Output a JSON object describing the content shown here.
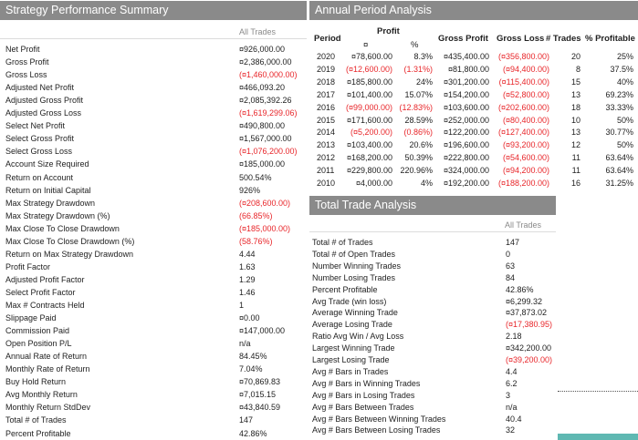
{
  "strategy": {
    "title": "Strategy Performance Summary",
    "column_header": "All Trades",
    "rows": [
      {
        "label": "Net Profit",
        "value": "¤926,000.00",
        "neg": false
      },
      {
        "label": "Gross Profit",
        "value": "¤2,386,000.00",
        "neg": false
      },
      {
        "label": "Gross Loss",
        "value": "(¤1,460,000.00)",
        "neg": true
      },
      {
        "label": "Adjusted Net Profit",
        "value": "¤466,093.20",
        "neg": false
      },
      {
        "label": "Adjusted Gross Profit",
        "value": "¤2,085,392.26",
        "neg": false
      },
      {
        "label": "Adjusted Gross Loss",
        "value": "(¤1,619,299.06)",
        "neg": true
      },
      {
        "label": "Select Net Profit",
        "value": "¤490,800.00",
        "neg": false
      },
      {
        "label": "Select Gross Profit",
        "value": "¤1,567,000.00",
        "neg": false
      },
      {
        "label": "Select Gross Loss",
        "value": "(¤1,076,200.00)",
        "neg": true
      },
      {
        "label": "Account Size Required",
        "value": "¤185,000.00",
        "neg": false
      },
      {
        "label": "Return on Account",
        "value": "500.54%",
        "neg": false
      },
      {
        "label": "Return on Initial Capital",
        "value": "926%",
        "neg": false
      },
      {
        "label": "Max Strategy Drawdown",
        "value": "(¤208,600.00)",
        "neg": true
      },
      {
        "label": "Max Strategy Drawdown (%)",
        "value": "(66.85%)",
        "neg": true
      },
      {
        "label": "Max Close To Close Drawdown",
        "value": "(¤185,000.00)",
        "neg": true
      },
      {
        "label": "Max Close To Close Drawdown (%)",
        "value": "(58.76%)",
        "neg": true
      },
      {
        "label": "Return on Max Strategy Drawdown",
        "value": "4.44",
        "neg": false
      },
      {
        "label": "Profit Factor",
        "value": "1.63",
        "neg": false
      },
      {
        "label": "Adjusted Profit Factor",
        "value": "1.29",
        "neg": false
      },
      {
        "label": "Select Profit Factor",
        "value": "1.46",
        "neg": false
      },
      {
        "label": "Max # Contracts Held",
        "value": "1",
        "neg": false
      },
      {
        "label": "Slippage Paid",
        "value": "¤0.00",
        "neg": false
      },
      {
        "label": "Commission Paid",
        "value": "¤147,000.00",
        "neg": false
      },
      {
        "label": "Open Position P/L",
        "value": "n/a",
        "neg": false
      },
      {
        "label": "Annual Rate of Return",
        "value": "84.45%",
        "neg": false
      },
      {
        "label": "Monthly Rate of Return",
        "value": "7.04%",
        "neg": false
      },
      {
        "label": "Buy  Hold Return",
        "value": "¤70,869.83",
        "neg": false
      },
      {
        "label": "Avg Monthly Return",
        "value": "¤7,015.15",
        "neg": false
      },
      {
        "label": "Monthly Return StdDev",
        "value": "¤43,840.59",
        "neg": false
      },
      {
        "label": "Total # of Trades",
        "value": "147",
        "neg": false
      },
      {
        "label": "Percent Profitable",
        "value": "42.86%",
        "neg": false
      }
    ]
  },
  "annual": {
    "title": "Annual Period Analysis",
    "headers": {
      "period": "Period",
      "profit": "Profit",
      "profit_currency": "¤",
      "profit_pct": "%",
      "gross_profit": "Gross Profit",
      "gross_loss": "Gross Loss",
      "trades": "# Trades",
      "pct_profitable": "% Profitable"
    },
    "rows": [
      {
        "period": "2020",
        "profit": "¤78,600.00",
        "profit_neg": false,
        "pct": "8.3%",
        "pct_neg": false,
        "gross_profit": "¤435,400.00",
        "gross_loss": "(¤356,800.00)",
        "trades": "20",
        "pct_profitable": "25%"
      },
      {
        "period": "2019",
        "profit": "(¤12,600.00)",
        "profit_neg": true,
        "pct": "(1.31%)",
        "pct_neg": true,
        "gross_profit": "¤81,800.00",
        "gross_loss": "(¤94,400.00)",
        "trades": "8",
        "pct_profitable": "37.5%"
      },
      {
        "period": "2018",
        "profit": "¤185,800.00",
        "profit_neg": false,
        "pct": "24%",
        "pct_neg": false,
        "gross_profit": "¤301,200.00",
        "gross_loss": "(¤115,400.00)",
        "trades": "15",
        "pct_profitable": "40%"
      },
      {
        "period": "2017",
        "profit": "¤101,400.00",
        "profit_neg": false,
        "pct": "15.07%",
        "pct_neg": false,
        "gross_profit": "¤154,200.00",
        "gross_loss": "(¤52,800.00)",
        "trades": "13",
        "pct_profitable": "69.23%"
      },
      {
        "period": "2016",
        "profit": "(¤99,000.00)",
        "profit_neg": true,
        "pct": "(12.83%)",
        "pct_neg": true,
        "gross_profit": "¤103,600.00",
        "gross_loss": "(¤202,600.00)",
        "trades": "18",
        "pct_profitable": "33.33%"
      },
      {
        "period": "2015",
        "profit": "¤171,600.00",
        "profit_neg": false,
        "pct": "28.59%",
        "pct_neg": false,
        "gross_profit": "¤252,000.00",
        "gross_loss": "(¤80,400.00)",
        "trades": "10",
        "pct_profitable": "50%"
      },
      {
        "period": "2014",
        "profit": "(¤5,200.00)",
        "profit_neg": true,
        "pct": "(0.86%)",
        "pct_neg": true,
        "gross_profit": "¤122,200.00",
        "gross_loss": "(¤127,400.00)",
        "trades": "13",
        "pct_profitable": "30.77%"
      },
      {
        "period": "2013",
        "profit": "¤103,400.00",
        "profit_neg": false,
        "pct": "20.6%",
        "pct_neg": false,
        "gross_profit": "¤196,600.00",
        "gross_loss": "(¤93,200.00)",
        "trades": "12",
        "pct_profitable": "50%"
      },
      {
        "period": "2012",
        "profit": "¤168,200.00",
        "profit_neg": false,
        "pct": "50.39%",
        "pct_neg": false,
        "gross_profit": "¤222,800.00",
        "gross_loss": "(¤54,600.00)",
        "trades": "11",
        "pct_profitable": "63.64%"
      },
      {
        "period": "2011",
        "profit": "¤229,800.00",
        "profit_neg": false,
        "pct": "220.96%",
        "pct_neg": false,
        "gross_profit": "¤324,000.00",
        "gross_loss": "(¤94,200.00)",
        "trades": "11",
        "pct_profitable": "63.64%"
      },
      {
        "period": "2010",
        "profit": "¤4,000.00",
        "profit_neg": false,
        "pct": "4%",
        "pct_neg": false,
        "gross_profit": "¤192,200.00",
        "gross_loss": "(¤188,200.00)",
        "trades": "16",
        "pct_profitable": "31.25%"
      }
    ]
  },
  "trade": {
    "title": "Total Trade Analysis",
    "column_header": "All Trades",
    "rows": [
      {
        "label": "Total # of Trades",
        "value": "147",
        "neg": false
      },
      {
        "label": "Total # of Open Trades",
        "value": "0",
        "neg": false
      },
      {
        "label": "Number Winning Trades",
        "value": "63",
        "neg": false
      },
      {
        "label": "Number Losing Trades",
        "value": "84",
        "neg": false
      },
      {
        "label": "Percent Profitable",
        "value": "42.86%",
        "neg": false
      },
      {
        "label": "Avg Trade (win  loss)",
        "value": "¤6,299.32",
        "neg": false
      },
      {
        "label": "Average Winning Trade",
        "value": "¤37,873.02",
        "neg": false
      },
      {
        "label": "Average Losing Trade",
        "value": "(¤17,380.95)",
        "neg": true
      },
      {
        "label": "Ratio Avg Win / Avg Loss",
        "value": "2.18",
        "neg": false
      },
      {
        "label": "Largest Winning Trade",
        "value": "¤342,200.00",
        "neg": false
      },
      {
        "label": "Largest Losing Trade",
        "value": "(¤39,200.00)",
        "neg": true
      },
      {
        "label": "Avg # Bars in Trades",
        "value": "4.4",
        "neg": false
      },
      {
        "label": "Avg # Bars in Winning Trades",
        "value": "6.2",
        "neg": false
      },
      {
        "label": "Avg # Bars in Losing Trades",
        "value": "3",
        "neg": false
      },
      {
        "label": "Avg # Bars Between Trades",
        "value": "n/a",
        "neg": false
      },
      {
        "label": "Avg # Bars Between Winning Trades",
        "value": "40.4",
        "neg": false
      },
      {
        "label": "Avg # Bars Between Losing Trades",
        "value": "32",
        "neg": false
      }
    ]
  }
}
